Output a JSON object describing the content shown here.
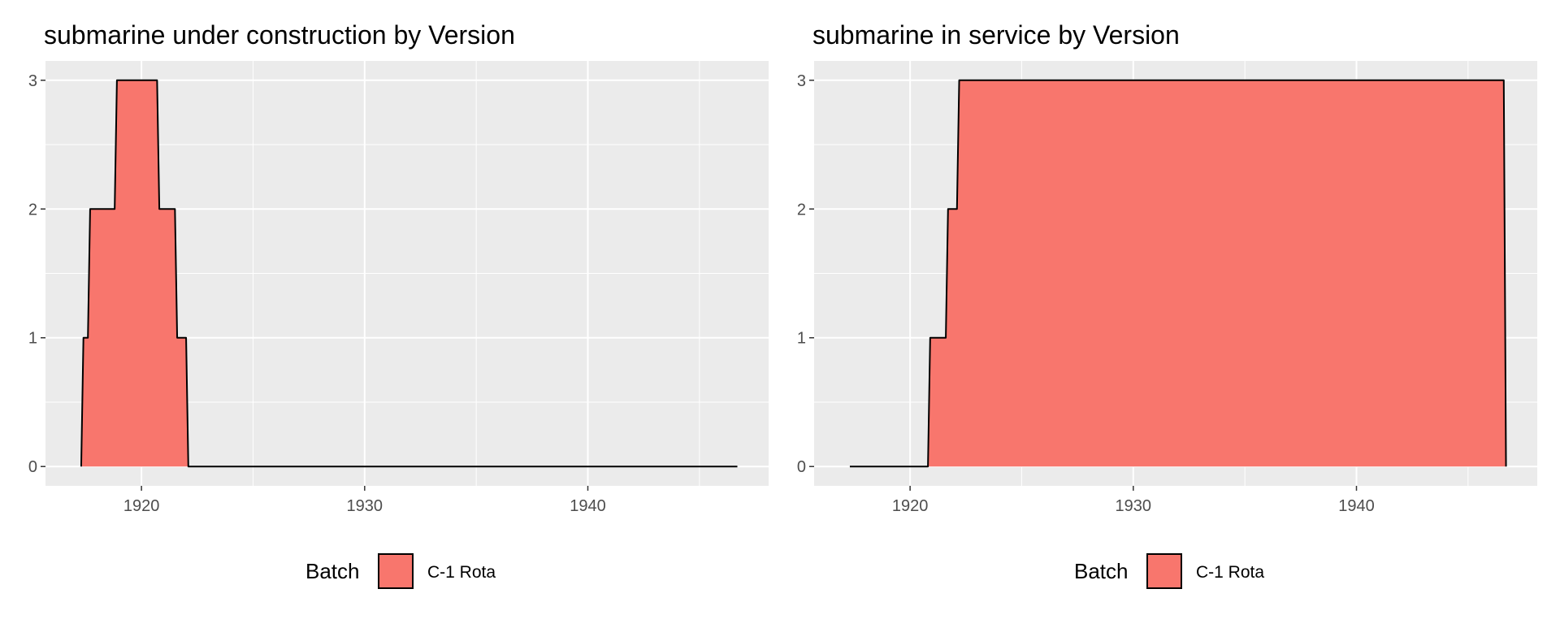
{
  "chart_data": [
    {
      "type": "area",
      "title": "submarine under construction by Version",
      "xlabel": "",
      "ylabel": "",
      "xlim": [
        1915.7,
        1948.1
      ],
      "ylim": [
        -0.15,
        3.15
      ],
      "x_ticks": [
        1920,
        1930,
        1940
      ],
      "x_tick_labels": [
        "1920",
        "1930",
        "1940"
      ],
      "y_ticks": [
        0,
        1,
        2,
        3
      ],
      "y_tick_labels": [
        "0",
        "1",
        "2",
        "3"
      ],
      "grid": true,
      "legend": {
        "position": "bottom",
        "title": "Batch",
        "entries": [
          "C-1 Rota"
        ]
      },
      "series": [
        {
          "name": "C-1 Rota",
          "color": "#F8766D",
          "points": [
            [
              1917.3,
              0
            ],
            [
              1917.4,
              1
            ],
            [
              1917.6,
              1
            ],
            [
              1917.7,
              2
            ],
            [
              1918.8,
              2
            ],
            [
              1918.9,
              3
            ],
            [
              1920.7,
              3
            ],
            [
              1920.8,
              2
            ],
            [
              1921.5,
              2
            ],
            [
              1921.6,
              1
            ],
            [
              1922.0,
              1
            ],
            [
              1922.1,
              0
            ],
            [
              1946.7,
              0
            ]
          ]
        }
      ]
    },
    {
      "type": "area",
      "title": "submarine in service by Version",
      "xlabel": "",
      "ylabel": "",
      "xlim": [
        1915.7,
        1948.1
      ],
      "ylim": [
        -0.15,
        3.15
      ],
      "x_ticks": [
        1920,
        1930,
        1940
      ],
      "x_tick_labels": [
        "1920",
        "1930",
        "1940"
      ],
      "y_ticks": [
        0,
        1,
        2,
        3
      ],
      "y_tick_labels": [
        "0",
        "1",
        "2",
        "3"
      ],
      "grid": true,
      "legend": {
        "position": "bottom",
        "title": "Batch",
        "entries": [
          "C-1 Rota"
        ]
      },
      "series": [
        {
          "name": "C-1 Rota",
          "color": "#F8766D",
          "points": [
            [
              1917.3,
              0
            ],
            [
              1920.8,
              0
            ],
            [
              1920.9,
              1
            ],
            [
              1921.6,
              1
            ],
            [
              1921.7,
              2
            ],
            [
              1922.1,
              2
            ],
            [
              1922.2,
              3
            ],
            [
              1946.6,
              3
            ],
            [
              1946.7,
              0
            ]
          ]
        }
      ]
    }
  ]
}
